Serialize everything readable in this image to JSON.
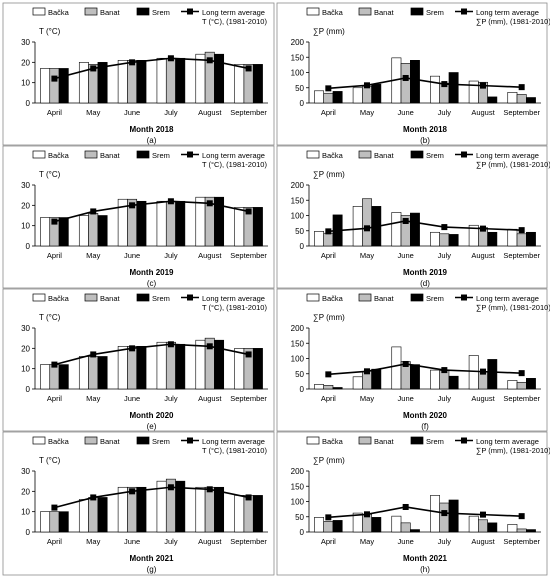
{
  "chart_data": [
    {
      "type": "bar+line",
      "ylabel": "T (°C)",
      "xlabel": "Month 2018",
      "caption": "(a)",
      "ylim": [
        0,
        30
      ],
      "yticks": [
        0,
        10,
        20,
        30
      ],
      "categories": [
        "April",
        "May",
        "June",
        "July",
        "August",
        "September"
      ],
      "series": [
        {
          "name": "Bačka",
          "kind": "bar",
          "color": "#ffffff",
          "values": [
            17,
            20,
            21,
            22,
            24,
            19
          ]
        },
        {
          "name": "Banat",
          "kind": "bar",
          "color": "#bfbfbf",
          "values": [
            17,
            19,
            21,
            22,
            25,
            19
          ]
        },
        {
          "name": "Srem",
          "kind": "bar",
          "color": "#000000",
          "values": [
            17,
            20,
            21,
            22,
            24,
            19
          ]
        }
      ],
      "line": {
        "name": "Long term average",
        "name2": "T (°C), (1981-2010)",
        "values": [
          12,
          17,
          20,
          22,
          21,
          17
        ]
      }
    },
    {
      "type": "bar+line",
      "ylabel": "∑P (mm)",
      "xlabel": "Month 2018",
      "caption": "(b)",
      "ylim": [
        0,
        200
      ],
      "yticks": [
        0,
        50,
        100,
        150,
        200
      ],
      "categories": [
        "April",
        "May",
        "June",
        "July",
        "August",
        "September"
      ],
      "series": [
        {
          "name": "Bačka",
          "kind": "bar",
          "color": "#ffffff",
          "values": [
            40,
            50,
            148,
            88,
            72,
            35
          ]
        },
        {
          "name": "Banat",
          "kind": "bar",
          "color": "#bfbfbf",
          "values": [
            32,
            55,
            130,
            65,
            68,
            28
          ]
        },
        {
          "name": "Srem",
          "kind": "bar",
          "color": "#000000",
          "values": [
            38,
            62,
            140,
            100,
            20,
            18
          ]
        }
      ],
      "line": {
        "name": "Long term average",
        "name2": "∑P (mm), (1981-2010)",
        "values": [
          48,
          58,
          82,
          62,
          57,
          52
        ]
      }
    },
    {
      "type": "bar+line",
      "ylabel": "T (°C)",
      "xlabel": "Month 2019",
      "caption": "(c)",
      "ylim": [
        0,
        30
      ],
      "yticks": [
        0,
        10,
        20,
        30
      ],
      "categories": [
        "April",
        "May",
        "June",
        "July",
        "August",
        "September"
      ],
      "series": [
        {
          "name": "Bačka",
          "kind": "bar",
          "color": "#ffffff",
          "values": [
            14,
            15,
            23,
            22,
            24,
            19
          ]
        },
        {
          "name": "Banat",
          "kind": "bar",
          "color": "#bfbfbf",
          "values": [
            14,
            16,
            23,
            22,
            24,
            19
          ]
        },
        {
          "name": "Srem",
          "kind": "bar",
          "color": "#000000",
          "values": [
            14,
            15,
            22,
            22,
            24,
            19
          ]
        }
      ],
      "line": {
        "name": "Long term average",
        "name2": "T (°C), (1981-2010)",
        "values": [
          12,
          17,
          20,
          22,
          21,
          17
        ]
      }
    },
    {
      "type": "bar+line",
      "ylabel": "∑P (mm)",
      "xlabel": "Month 2019",
      "caption": "(d)",
      "ylim": [
        0,
        200
      ],
      "yticks": [
        0,
        50,
        100,
        150,
        200
      ],
      "categories": [
        "April",
        "May",
        "June",
        "July",
        "August",
        "September"
      ],
      "series": [
        {
          "name": "Bačka",
          "kind": "bar",
          "color": "#ffffff",
          "values": [
            48,
            130,
            110,
            45,
            68,
            55
          ]
        },
        {
          "name": "Banat",
          "kind": "bar",
          "color": "#bfbfbf",
          "values": [
            42,
            155,
            100,
            40,
            60,
            40
          ]
        },
        {
          "name": "Srem",
          "kind": "bar",
          "color": "#000000",
          "values": [
            102,
            130,
            108,
            38,
            45,
            45
          ]
        }
      ],
      "line": {
        "name": "Long term average",
        "name2": "∑P (mm), (1981-2010)",
        "values": [
          48,
          58,
          82,
          62,
          57,
          52
        ]
      }
    },
    {
      "type": "bar+line",
      "ylabel": "T (°C)",
      "xlabel": "Month 2020",
      "caption": "(e)",
      "ylim": [
        0,
        30
      ],
      "yticks": [
        0,
        10,
        20,
        30
      ],
      "categories": [
        "April",
        "May",
        "June",
        "July",
        "August",
        "September"
      ],
      "series": [
        {
          "name": "Bačka",
          "kind": "bar",
          "color": "#ffffff",
          "values": [
            12,
            16,
            21,
            23,
            24,
            20
          ]
        },
        {
          "name": "Banat",
          "kind": "bar",
          "color": "#bfbfbf",
          "values": [
            12,
            16,
            21,
            23,
            25,
            20
          ]
        },
        {
          "name": "Srem",
          "kind": "bar",
          "color": "#000000",
          "values": [
            12,
            16,
            21,
            22,
            24,
            20
          ]
        }
      ],
      "line": {
        "name": "Long term average",
        "name2": "T (°C), (1981-2010)",
        "values": [
          12,
          17,
          20,
          22,
          21,
          17
        ]
      }
    },
    {
      "type": "bar+line",
      "ylabel": "∑P (mm)",
      "xlabel": "Month 2020",
      "caption": "(f)",
      "ylim": [
        0,
        200
      ],
      "yticks": [
        0,
        50,
        100,
        150,
        200
      ],
      "categories": [
        "April",
        "May",
        "June",
        "July",
        "August",
        "September"
      ],
      "series": [
        {
          "name": "Bačka",
          "kind": "bar",
          "color": "#ffffff",
          "values": [
            15,
            40,
            138,
            62,
            110,
            28
          ]
        },
        {
          "name": "Banat",
          "kind": "bar",
          "color": "#bfbfbf",
          "values": [
            12,
            58,
            90,
            60,
            58,
            22
          ]
        },
        {
          "name": "Srem",
          "kind": "bar",
          "color": "#000000",
          "values": [
            5,
            65,
            80,
            42,
            97,
            35
          ]
        }
      ],
      "line": {
        "name": "Long term average",
        "name2": "∑P (mm), (1981-2010)",
        "values": [
          48,
          58,
          82,
          62,
          57,
          52
        ]
      }
    },
    {
      "type": "bar+line",
      "ylabel": "T (°C)",
      "xlabel": "Month 2021",
      "caption": "(g)",
      "ylim": [
        0,
        30
      ],
      "yticks": [
        0,
        10,
        20,
        30
      ],
      "categories": [
        "April",
        "May",
        "June",
        "July",
        "August",
        "September"
      ],
      "series": [
        {
          "name": "Bačka",
          "kind": "bar",
          "color": "#ffffff",
          "values": [
            10,
            16,
            22,
            25,
            22,
            18
          ]
        },
        {
          "name": "Banat",
          "kind": "bar",
          "color": "#bfbfbf",
          "values": [
            10,
            17,
            22,
            26,
            22,
            18
          ]
        },
        {
          "name": "Srem",
          "kind": "bar",
          "color": "#000000",
          "values": [
            10,
            17,
            22,
            25,
            22,
            18
          ]
        }
      ],
      "line": {
        "name": "Long term average",
        "name2": "T (°C), (1981-2010)",
        "values": [
          12,
          17,
          20,
          22,
          21,
          17
        ]
      }
    },
    {
      "type": "bar+line",
      "ylabel": "∑P (mm)",
      "xlabel": "Month 2021",
      "caption": "(h)",
      "ylim": [
        0,
        200
      ],
      "yticks": [
        0,
        50,
        100,
        150,
        200
      ],
      "categories": [
        "April",
        "May",
        "June",
        "July",
        "August",
        "September"
      ],
      "series": [
        {
          "name": "Bačka",
          "kind": "bar",
          "color": "#ffffff",
          "values": [
            48,
            62,
            52,
            120,
            52,
            25
          ]
        },
        {
          "name": "Banat",
          "kind": "bar",
          "color": "#bfbfbf",
          "values": [
            35,
            58,
            30,
            95,
            40,
            10
          ]
        },
        {
          "name": "Srem",
          "kind": "bar",
          "color": "#000000",
          "values": [
            38,
            48,
            8,
            105,
            30,
            8
          ]
        }
      ],
      "line": {
        "name": "Long term average",
        "name2": "∑P (mm), (1981-2010)",
        "values": [
          48,
          58,
          82,
          62,
          57,
          52
        ]
      }
    }
  ]
}
